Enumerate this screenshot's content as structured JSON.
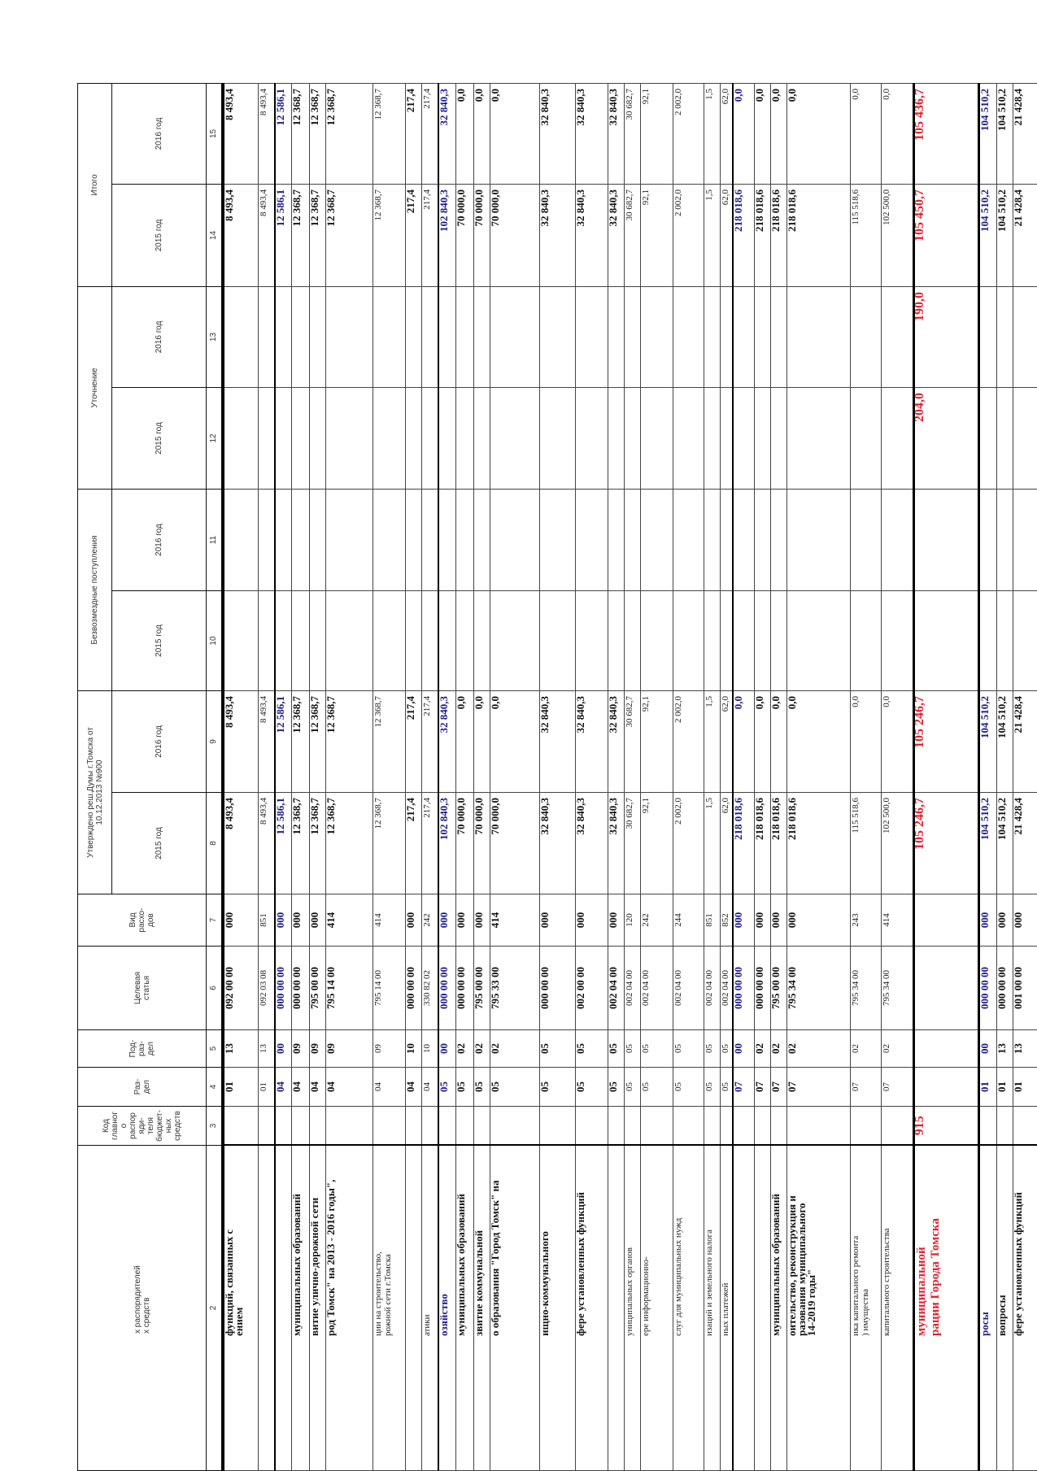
{
  "header": {
    "col2": "х распорядителей\nх средств",
    "col3": "Код\nглавног\nо\nраспор\nяди-\nтеля\nбюджет-\nных\nсредств",
    "col4": "Раз-\nдел",
    "col5": "Под-\nраз-\nдел",
    "col6": "Целевая\nстатья",
    "col7": "Вид\nрасхо-\nдов",
    "group_approved": "Утверждено реш.Думы г.Томска от\n10.12.2013 №900",
    "group_grants": "Безвозмездные поступления",
    "group_adjust": "Уточнение",
    "group_total": "Итого",
    "years": [
      "2015 год",
      "2016 год",
      "2015 год",
      "2016 год",
      "2015 год",
      "2016 год",
      "2015 год",
      "2016 год"
    ],
    "numbers": [
      "2",
      "3",
      "4",
      "5",
      "6",
      "7",
      "8",
      "9",
      "10",
      "11",
      "12",
      "13",
      "14",
      "15"
    ]
  },
  "colors": {
    "blue": "#1b1b8a",
    "red": "#e3202b"
  },
  "rows": [
    {
      "style": "bold",
      "name": "функций, связанных с\nением",
      "c3": "",
      "c4": "01",
      "c5": "13",
      "c6": "092 00 00",
      "c7": "000",
      "v8": "8 493,4",
      "v9": "8 493,4",
      "v10": "",
      "v11": "",
      "v12": "",
      "v13": "",
      "v14": "8 493,4",
      "v15": "8 493,4"
    },
    {
      "style": "normal",
      "name": "",
      "c3": "",
      "c4": "01",
      "c5": "13",
      "c6": "092 03 08",
      "c7": "851",
      "v8": "8 493,4",
      "v9": "8 493,4",
      "v10": "",
      "v11": "",
      "v12": "",
      "v13": "",
      "v14": "8 493,4",
      "v15": "8 493,4"
    },
    {
      "style": "blue",
      "name": "",
      "c3": "",
      "c4": "04",
      "c5": "00",
      "c6": "000 00 00",
      "c7": "000",
      "v8": "12 586,1",
      "v9": "12 586,1",
      "v10": "",
      "v11": "",
      "v12": "",
      "v13": "",
      "v14": "12 586,1",
      "v15": "12 586,1"
    },
    {
      "style": "bold",
      "name": "муниципальных образований",
      "c3": "",
      "c4": "04",
      "c5": "09",
      "c6": "000 00 00",
      "c7": "000",
      "v8": "12 368,7",
      "v9": "12 368,7",
      "v10": "",
      "v11": "",
      "v12": "",
      "v13": "",
      "v14": "12 368,7",
      "v15": "12 368,7"
    },
    {
      "style": "bold",
      "name": "витие улично-дорожной сети",
      "c3": "",
      "c4": "04",
      "c5": "09",
      "c6": "795 00 00",
      "c7": "000",
      "v8": "12 368,7",
      "v9": "12 368,7",
      "v10": "",
      "v11": "",
      "v12": "",
      "v13": "",
      "v14": "12 368,7",
      "v15": "12 368,7"
    },
    {
      "style": "bold",
      "name": "род Томск\" на 2013 - 2016 годы\",",
      "c3": "",
      "c4": "04",
      "c5": "09",
      "c6": "795 14 00",
      "c7": "414",
      "v8": "12 368,7",
      "v9": "12 368,7",
      "v10": "",
      "v11": "",
      "v12": "",
      "v13": "",
      "v14": "12 368,7",
      "v15": "12 368,7"
    },
    {
      "style": "normal",
      "name": "ции на строительство,\nрожной сети г.Томска",
      "c3": "",
      "c4": "04",
      "c5": "09",
      "c6": "795 14 00",
      "c7": "414",
      "v8": "12 368,7",
      "v9": "12 368,7",
      "v10": "",
      "v11": "",
      "v12": "",
      "v13": "",
      "v14": "12 368,7",
      "v15": "12 368,7"
    },
    {
      "style": "bold",
      "name": "",
      "c3": "",
      "c4": "04",
      "c5": "10",
      "c6": "000 00 00",
      "c7": "000",
      "v8": "217,4",
      "v9": "217,4",
      "v10": "",
      "v11": "",
      "v12": "",
      "v13": "",
      "v14": "217,4",
      "v15": "217,4"
    },
    {
      "style": "normal",
      "name": "атики",
      "c3": "",
      "c4": "04",
      "c5": "10",
      "c6": "330 82 02",
      "c7": "242",
      "v8": "217,4",
      "v9": "217,4",
      "v10": "",
      "v11": "",
      "v12": "",
      "v13": "",
      "v14": "217,4",
      "v15": "217,4"
    },
    {
      "style": "blue",
      "name": "озяйство",
      "c3": "",
      "c4": "05",
      "c5": "00",
      "c6": "000 00 00",
      "c7": "000",
      "v8": "102 840,3",
      "v9": "32 840,3",
      "v10": "",
      "v11": "",
      "v12": "",
      "v13": "",
      "v14": "102 840,3",
      "v15": "32 840,3"
    },
    {
      "style": "bold",
      "name": "муниципальных образований",
      "c3": "",
      "c4": "05",
      "c5": "02",
      "c6": "000 00 00",
      "c7": "000",
      "v8": "70 000,0",
      "v9": "0,0",
      "v10": "",
      "v11": "",
      "v12": "",
      "v13": "",
      "v14": "70 000,0",
      "v15": "0,0"
    },
    {
      "style": "bold",
      "name": "звитие коммунальной",
      "c3": "",
      "c4": "05",
      "c5": "02",
      "c6": "795 00 00",
      "c7": "000",
      "v8": "70 000,0",
      "v9": "0,0",
      "v10": "",
      "v11": "",
      "v12": "",
      "v13": "",
      "v14": "70 000,0",
      "v15": "0,0"
    },
    {
      "style": "bold",
      "name": "о образования \"Город Томск\" на",
      "c3": "",
      "c4": "05",
      "c5": "02",
      "c6": "795 33 00",
      "c7": "414",
      "v8": "70 000,0",
      "v9": "0,0",
      "v10": "",
      "v11": "",
      "v12": "",
      "v13": "",
      "v14": "70 000,0",
      "v15": "0,0"
    },
    {
      "style": "bold",
      "name": "ищно-коммунального",
      "c3": "",
      "c4": "05",
      "c5": "05",
      "c6": "000 00 00",
      "c7": "000",
      "v8": "32 840,3",
      "v9": "32 840,3",
      "v10": "",
      "v11": "",
      "v12": "",
      "v13": "",
      "v14": "32 840,3",
      "v15": "32 840,3"
    },
    {
      "style": "bold",
      "name": "фере установленных функций",
      "c3": "",
      "c4": "05",
      "c5": "05",
      "c6": "002 00 00",
      "c7": "000",
      "v8": "32 840,3",
      "v9": "32 840,3",
      "v10": "",
      "v11": "",
      "v12": "",
      "v13": "",
      "v14": "32 840,3",
      "v15": "32 840,3"
    },
    {
      "style": "bold",
      "name": "",
      "c3": "",
      "c4": "05",
      "c5": "05",
      "c6": "002 04 00",
      "c7": "000",
      "v8": "32 840,3",
      "v9": "32 840,3",
      "v10": "",
      "v11": "",
      "v12": "",
      "v13": "",
      "v14": "32 840,3",
      "v15": "32 840,3"
    },
    {
      "style": "normal",
      "name": "униципальных органов",
      "c3": "",
      "c4": "05",
      "c5": "05",
      "c6": "002 04 00",
      "c7": "120",
      "v8": "30 682,7",
      "v9": "30 682,7",
      "v10": "",
      "v11": "",
      "v12": "",
      "v13": "",
      "v14": "30 682,7",
      "v15": "30 682,7"
    },
    {
      "style": "normal",
      "name": "ере информационно-",
      "c3": "",
      "c4": "05",
      "c5": "05",
      "c6": "002 04 00",
      "c7": "242",
      "v8": "92,1",
      "v9": "92,1",
      "v10": "",
      "v11": "",
      "v12": "",
      "v13": "",
      "v14": "92,1",
      "v15": "92,1"
    },
    {
      "style": "normal",
      "name": "слуг для муниципальных нужд",
      "c3": "",
      "c4": "05",
      "c5": "05",
      "c6": "002 04 00",
      "c7": "244",
      "v8": "2 002,0",
      "v9": "2 002,0",
      "v10": "",
      "v11": "",
      "v12": "",
      "v13": "",
      "v14": "2 002,0",
      "v15": "2 002,0"
    },
    {
      "style": "normal",
      "name": "изаций и земельного налога",
      "c3": "",
      "c4": "05",
      "c5": "05",
      "c6": "002 04 00",
      "c7": "851",
      "v8": "1,5",
      "v9": "1,5",
      "v10": "",
      "v11": "",
      "v12": "",
      "v13": "",
      "v14": "1,5",
      "v15": "1,5"
    },
    {
      "style": "normal",
      "name": "ных платежей",
      "c3": "",
      "c4": "05",
      "c5": "05",
      "c6": "002 04 00",
      "c7": "852",
      "v8": "62,0",
      "v9": "62,0",
      "v10": "",
      "v11": "",
      "v12": "",
      "v13": "",
      "v14": "62,0",
      "v15": "62,0"
    },
    {
      "style": "blue",
      "name": "",
      "c3": "",
      "c4": "07",
      "c5": "00",
      "c6": "000 00 00",
      "c7": "000",
      "v8": "218 018,6",
      "v9": "0,0",
      "v10": "",
      "v11": "",
      "v12": "",
      "v13": "",
      "v14": "218 018,6",
      "v15": "0,0"
    },
    {
      "style": "bold",
      "name": "",
      "c3": "",
      "c4": "07",
      "c5": "02",
      "c6": "000 00 00",
      "c7": "000",
      "v8": "218 018,6",
      "v9": "0,0",
      "v10": "",
      "v11": "",
      "v12": "",
      "v13": "",
      "v14": "218 018,6",
      "v15": "0,0"
    },
    {
      "style": "bold",
      "name": "муниципальных образований",
      "c3": "",
      "c4": "07",
      "c5": "02",
      "c6": "795 00 00",
      "c7": "000",
      "v8": "218 018,6",
      "v9": "0,0",
      "v10": "",
      "v11": "",
      "v12": "",
      "v13": "",
      "v14": "218 018,6",
      "v15": "0,0"
    },
    {
      "style": "bold",
      "name": "оительство, реконструкция и\nразования муниципального\n14-2019 годы\"",
      "c3": "",
      "c4": "07",
      "c5": "02",
      "c6": "795 34 00",
      "c7": "000",
      "v8": "218 018,6",
      "v9": "0,0",
      "v10": "",
      "v11": "",
      "v12": "",
      "v13": "",
      "v14": "218 018,6",
      "v15": "0,0"
    },
    {
      "style": "normal",
      "name": "ика капитального ремонта\n) имущества",
      "c3": "",
      "c4": "07",
      "c5": "02",
      "c6": "795 34 00",
      "c7": "243",
      "v8": "115 518,6",
      "v9": "0,0",
      "v10": "",
      "v11": "",
      "v12": "",
      "v13": "",
      "v14": "115 518,6",
      "v15": "0,0"
    },
    {
      "style": "normal",
      "name": "капитального строительства",
      "c3": "",
      "c4": "07",
      "c5": "02",
      "c6": "795 34 00",
      "c7": "414",
      "v8": "102 500,0",
      "v9": "0,0",
      "v10": "",
      "v11": "",
      "v12": "",
      "v13": "",
      "v14": "102 500,0",
      "v15": "0,0"
    },
    {
      "style": "red",
      "name": "муниципальной\nрации Города Томска",
      "c3": "915",
      "c4": "",
      "c5": "",
      "c6": "",
      "c7": "",
      "v8": "105 246,7",
      "v9": "105 246,7",
      "v10": "",
      "v11": "",
      "v12": "204,0",
      "v13": "190,0",
      "v14": "105 450,7",
      "v15": "105 436,7"
    },
    {
      "style": "blue",
      "name": "росы",
      "c3": "",
      "c4": "01",
      "c5": "00",
      "c6": "000 00 00",
      "c7": "000",
      "v8": "104 510,2",
      "v9": "104 510,2",
      "v10": "",
      "v11": "",
      "v12": "",
      "v13": "",
      "v14": "104 510,2",
      "v15": "104 510,2"
    },
    {
      "style": "bold",
      "name": "вопросы",
      "c3": "",
      "c4": "01",
      "c5": "13",
      "c6": "000 00 00",
      "c7": "000",
      "v8": "104 510,2",
      "v9": "104 510,2",
      "v10": "",
      "v11": "",
      "v12": "",
      "v13": "",
      "v14": "104 510,2",
      "v15": "104 510,2"
    },
    {
      "style": "bold",
      "name": "фере установленных функций",
      "c3": "",
      "c4": "01",
      "c5": "13",
      "c6": "001 00 00",
      "c7": "000",
      "v8": "21 428,4",
      "v9": "21 428,4",
      "v10": "",
      "v11": "",
      "v12": "",
      "v13": "",
      "v14": "21 428,4",
      "v15": "21 428,4"
    }
  ]
}
